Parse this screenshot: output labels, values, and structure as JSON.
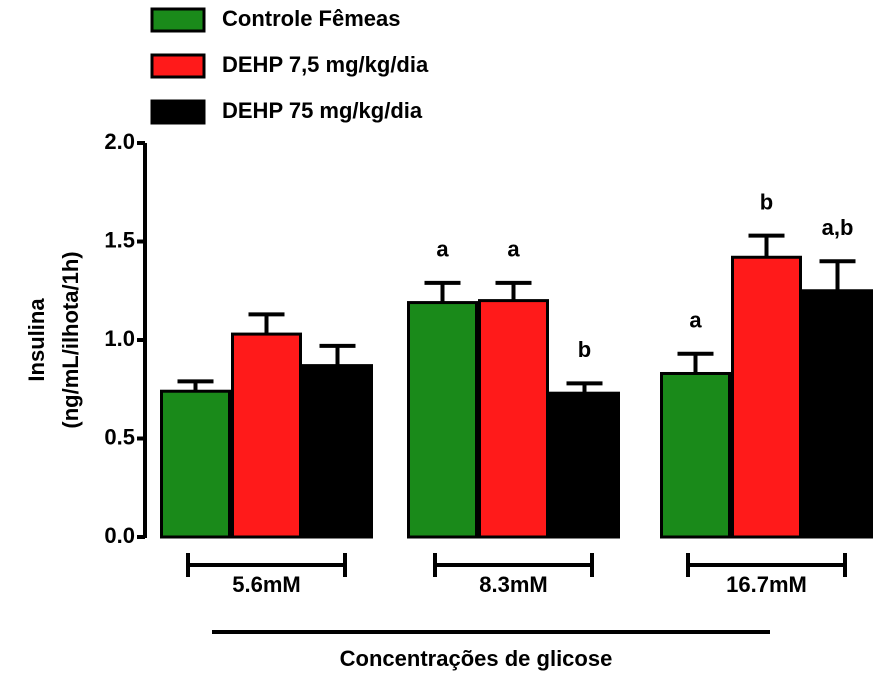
{
  "chart_data": {
    "type": "bar",
    "ylabel": [
      "Insulina",
      "(ng/mL/ilhota/1h)"
    ],
    "xlabel": "Concentrações de glicose",
    "categories": [
      "5.6mM",
      "8.3mM",
      "16.7mM"
    ],
    "series": [
      {
        "name": "Controle Fêmeas",
        "color": "#1a8a1a",
        "values": [
          0.74,
          1.19,
          0.83
        ],
        "errors": [
          0.05,
          0.1,
          0.1
        ],
        "annotations": [
          null,
          "a",
          "a"
        ]
      },
      {
        "name": "DEHP 7,5 mg/kg/dia",
        "color": "#ff1a1a",
        "values": [
          1.03,
          1.2,
          1.42
        ],
        "errors": [
          0.1,
          0.09,
          0.11
        ],
        "annotations": [
          null,
          "a",
          "b"
        ]
      },
      {
        "name": "DEHP 75 mg/kg/dia",
        "color": "#000000",
        "values": [
          0.87,
          0.73,
          1.25
        ],
        "errors": [
          0.1,
          0.05,
          0.15
        ],
        "annotations": [
          null,
          "b",
          "a,b"
        ]
      }
    ],
    "ylim": [
      0,
      2
    ],
    "yticks": [
      {
        "value": 0,
        "label": "0.0"
      },
      0.5,
      {
        "value": 1,
        "label": "1.0"
      },
      1.5,
      {
        "value": 2,
        "label": "2.0"
      }
    ],
    "legend": "top-left"
  }
}
